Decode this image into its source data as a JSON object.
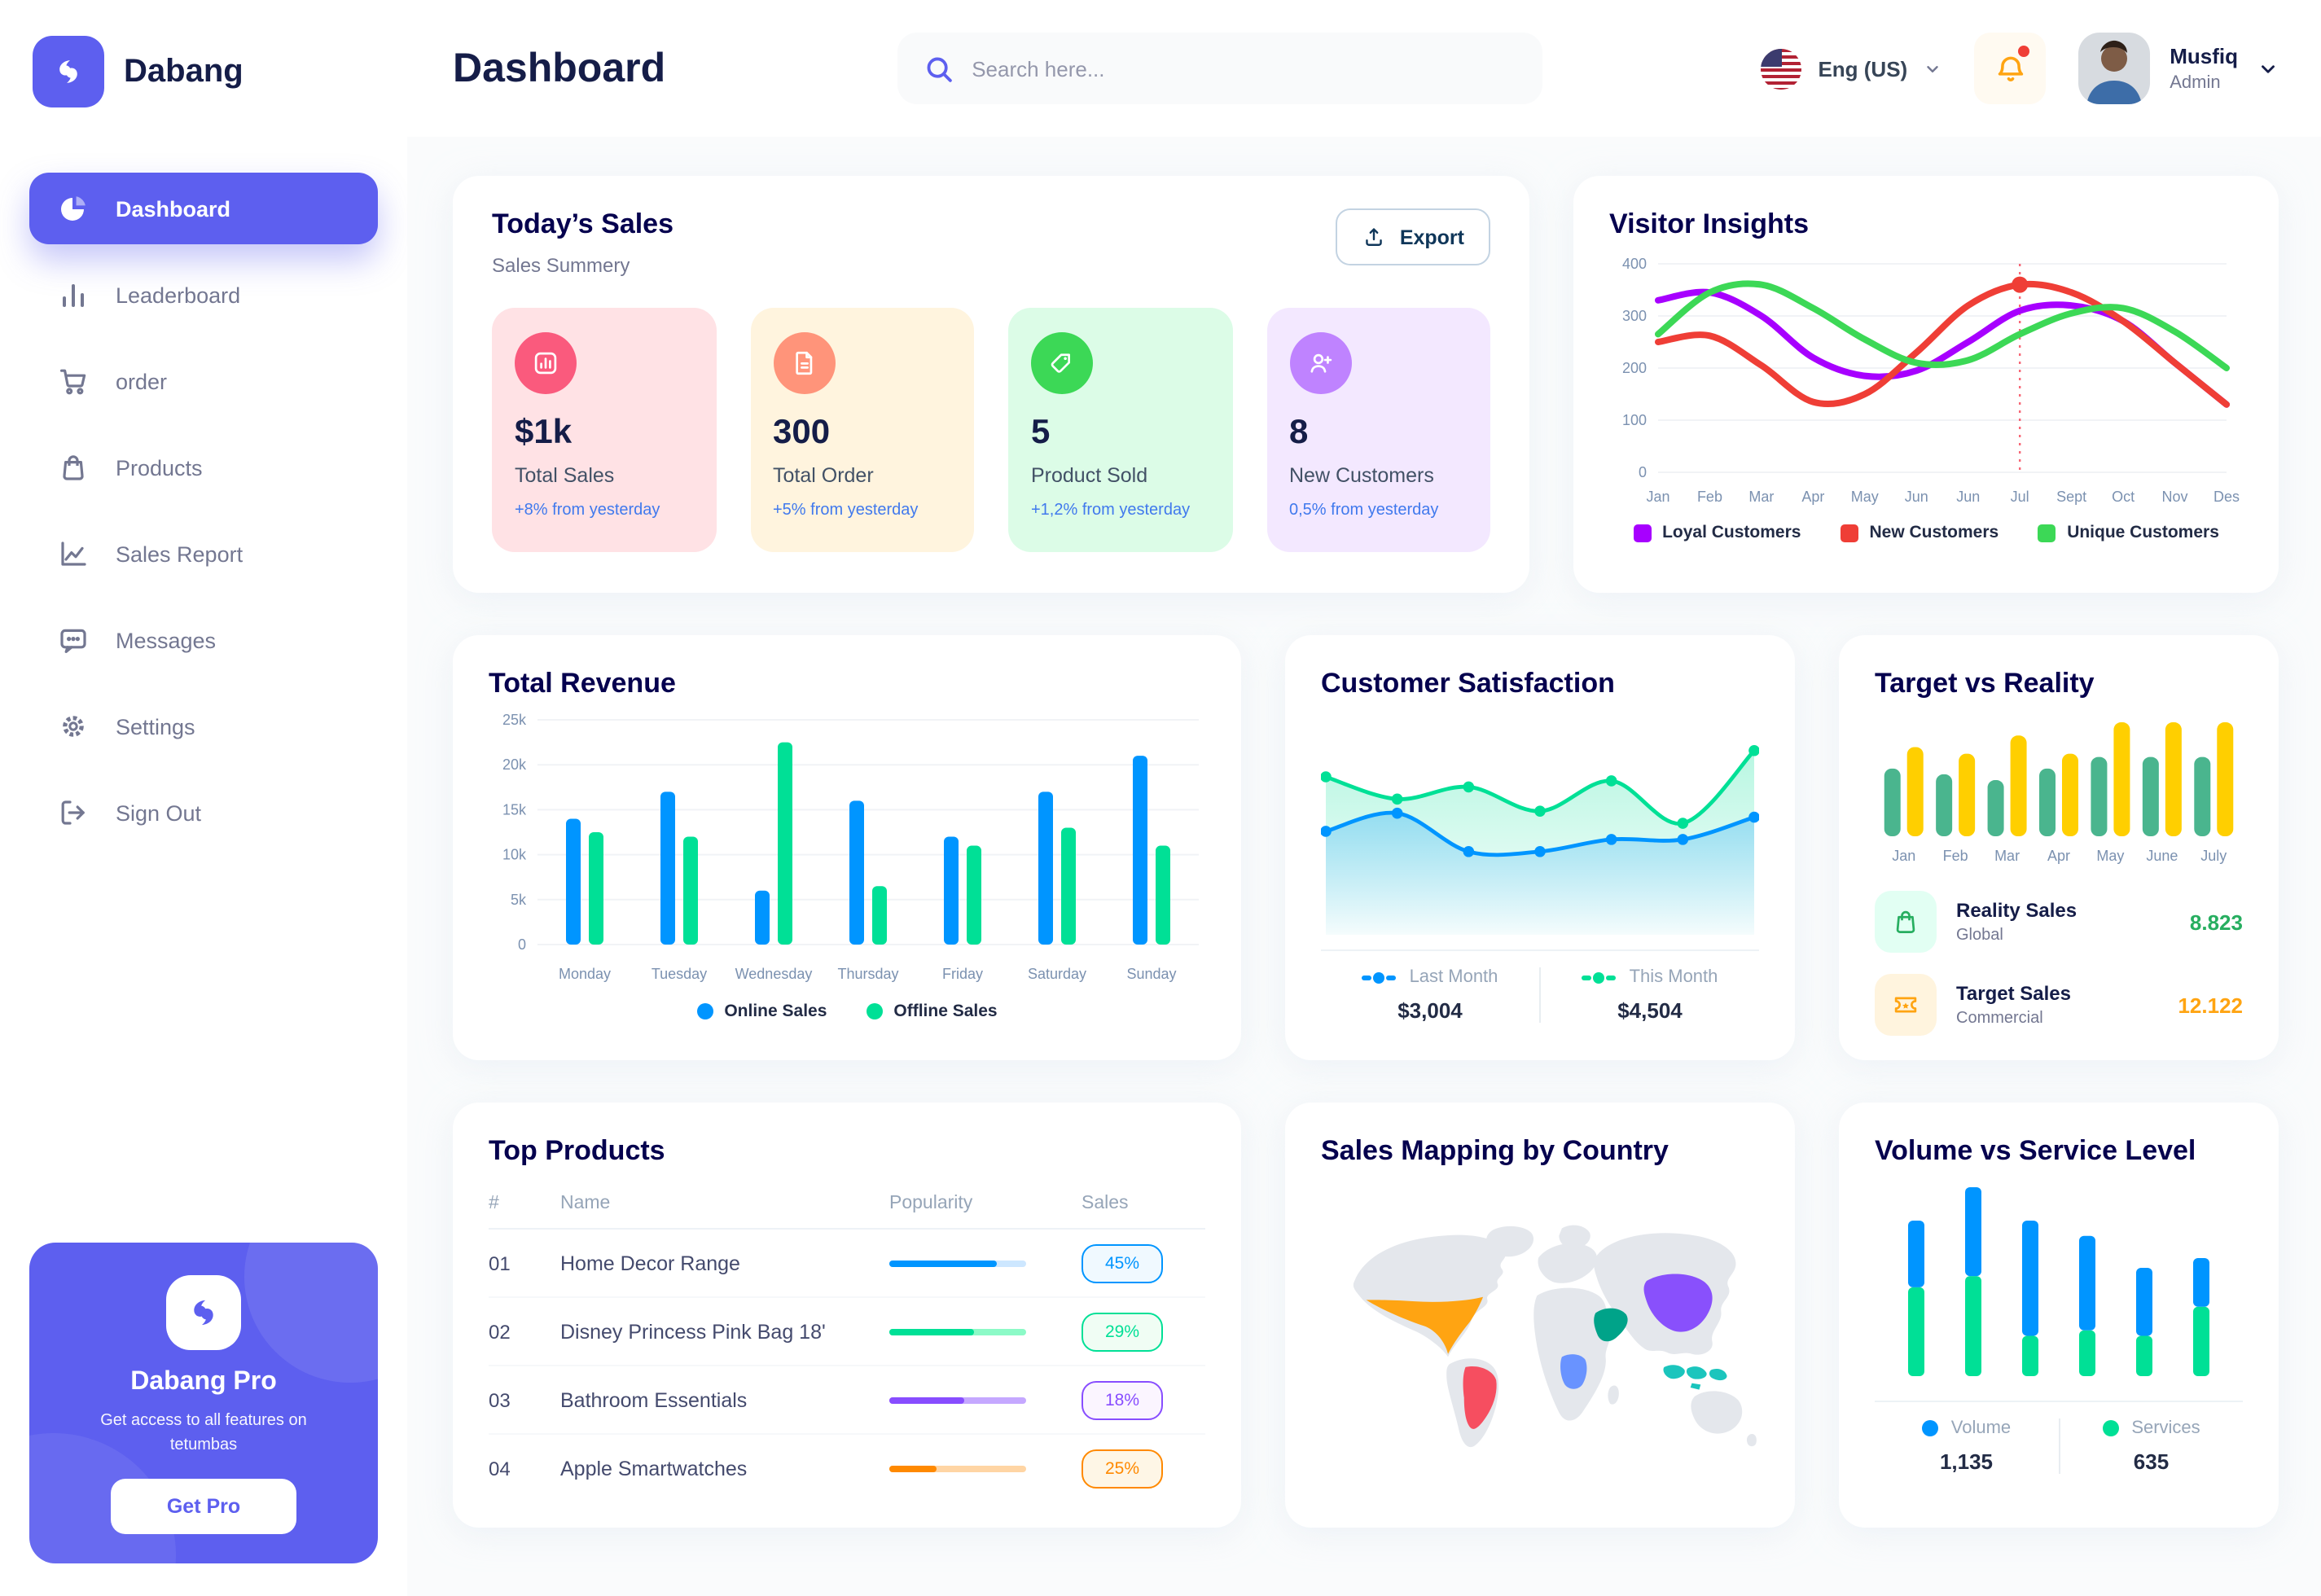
{
  "app": {
    "name": "Dabang"
  },
  "sidebar": {
    "items": [
      {
        "label": "Dashboard"
      },
      {
        "label": "Leaderboard"
      },
      {
        "label": "order"
      },
      {
        "label": "Products"
      },
      {
        "label": "Sales Report"
      },
      {
        "label": "Messages"
      },
      {
        "label": "Settings"
      },
      {
        "label": "Sign Out"
      }
    ],
    "pro_card": {
      "title": "Dabang Pro",
      "subtitle": "Get access to all features on tetumbas",
      "button_label": "Get Pro"
    }
  },
  "header": {
    "title": "Dashboard",
    "search_placeholder": "Search here...",
    "language": "Eng (US)",
    "user_name": "Musfiq",
    "user_role": "Admin"
  },
  "today": {
    "title": "Today’s Sales",
    "subtitle": "Sales Summery",
    "export_label": "Export",
    "cards": [
      {
        "value": "$1k",
        "label": "Total Sales",
        "delta": "+8% from yesterday",
        "bg": "#FFE2E5",
        "icon_bg": "#FA5A7D"
      },
      {
        "value": "300",
        "label": "Total Order",
        "delta": "+5% from yesterday",
        "bg": "#FFF4DE",
        "icon_bg": "#FF947A"
      },
      {
        "value": "5",
        "label": "Product Sold",
        "delta": "+1,2% from yesterday",
        "bg": "#DCFCE7",
        "icon_bg": "#3CD856"
      },
      {
        "value": "8",
        "label": "New Customers",
        "delta": "0,5% from yesterday",
        "bg": "#F3E8FF",
        "icon_bg": "#BF83FF"
      }
    ]
  },
  "top_products": {
    "title": "Top Products",
    "headers": {
      "num": "#",
      "name": "Name",
      "popularity": "Popularity",
      "sales": "Sales"
    },
    "rows": [
      {
        "num": "01",
        "name": "Home Decor Range",
        "progress": "78%",
        "sales": "45%",
        "color": "#0095FF",
        "track": "#CDE7FF",
        "badge_bg": "#F0F9FF"
      },
      {
        "num": "02",
        "name": "Disney Princess Pink Bag 18'",
        "progress": "62%",
        "sales": "29%",
        "color": "#00E096",
        "track": "#8CFAC7",
        "badge_bg": "#F0FDF4"
      },
      {
        "num": "03",
        "name": "Bathroom Essentials",
        "progress": "55%",
        "sales": "18%",
        "color": "#884DFF",
        "track": "#C5A8FF",
        "badge_bg": "#FBF5FF"
      },
      {
        "num": "04",
        "name": "Apple Smartwatches",
        "progress": "34%",
        "sales": "25%",
        "color": "#FF8900",
        "track": "#FFD5A4",
        "badge_bg": "#FEF6E6"
      }
    ]
  },
  "sales_map": {
    "title": "Sales Mapping by Country",
    "countries": [
      {
        "name": "United States",
        "color": "#FFA412"
      },
      {
        "name": "Brazil",
        "color": "#F64E60"
      },
      {
        "name": "Saudi Arabia",
        "color": "#00A389"
      },
      {
        "name": "DR Congo",
        "color": "#6993FF"
      },
      {
        "name": "China",
        "color": "#8950FC"
      },
      {
        "name": "Indonesia",
        "color": "#1BC5BD"
      }
    ]
  },
  "chart_data": [
    {
      "id": "visitor",
      "type": "line",
      "title": "Visitor Insights",
      "x": [
        "Jan",
        "Feb",
        "Mar",
        "Apr",
        "May",
        "Jun",
        "Jun",
        "Jul",
        "Sept",
        "Oct",
        "Nov",
        "Des"
      ],
      "ylim": [
        0,
        400
      ],
      "yticks": [
        0,
        100,
        200,
        300,
        400
      ],
      "grid": true,
      "legend_position": "bottom",
      "series": [
        {
          "name": "Loyal Customers",
          "color": "#A700FF",
          "values": [
            330,
            345,
            300,
            220,
            185,
            195,
            250,
            310,
            320,
            290,
            210,
            130
          ]
        },
        {
          "name": "New Customers",
          "color": "#EF3E36",
          "values": [
            250,
            262,
            205,
            135,
            150,
            230,
            320,
            360,
            345,
            290,
            210,
            130
          ]
        },
        {
          "name": "Unique Customers",
          "color": "#3CD856",
          "values": [
            265,
            345,
            360,
            315,
            255,
            210,
            215,
            265,
            305,
            315,
            270,
            200
          ]
        }
      ],
      "marker": {
        "series": 1,
        "index": 7
      }
    },
    {
      "id": "revenue",
      "type": "bar",
      "title": "Total Revenue",
      "categories": [
        "Monday",
        "Tuesday",
        "Wednesday",
        "Thursday",
        "Friday",
        "Saturday",
        "Sunday"
      ],
      "ylim": [
        0,
        25000
      ],
      "yticks": [
        0,
        5000,
        10000,
        15000,
        20000,
        25000
      ],
      "ytick_labels": [
        "0",
        "5k",
        "10k",
        "15k",
        "20k",
        "25k"
      ],
      "grid": true,
      "legend_position": "bottom",
      "series": [
        {
          "name": "Online Sales",
          "color": "#0095FF",
          "values": [
            14000,
            17000,
            6000,
            16000,
            12000,
            17000,
            21000
          ]
        },
        {
          "name": "Offline Sales",
          "color": "#00E096",
          "values": [
            12500,
            12000,
            22500,
            6500,
            11000,
            13000,
            11000
          ]
        }
      ]
    },
    {
      "id": "satisfaction",
      "type": "area",
      "title": "Customer Satisfaction",
      "ylim": [
        0,
        100
      ],
      "legend_position": "bottom",
      "series": [
        {
          "name": "Last Month",
          "value_label": "$3,004",
          "color": "#0095FF",
          "values": [
            48,
            57,
            38,
            38,
            44,
            44,
            55
          ]
        },
        {
          "name": "This Month",
          "value_label": "$4,504",
          "color": "#00E096",
          "values": [
            75,
            64,
            70,
            58,
            73,
            52,
            88
          ]
        }
      ]
    },
    {
      "id": "target",
      "type": "bar-rounded",
      "title": "Target vs Reality",
      "categories": [
        "Jan",
        "Feb",
        "Mar",
        "Apr",
        "May",
        "June",
        "July"
      ],
      "ylim": [
        0,
        14
      ],
      "legend_position": "bottom",
      "series": [
        {
          "name": "Reality Sales",
          "subtitle": "Global",
          "value_label": "8.823",
          "value_color": "#27AE60",
          "color": "#4AB58E",
          "values": [
            8.2,
            7.5,
            6.8,
            8.2,
            9.6,
            9.6,
            9.6
          ]
        },
        {
          "name": "Target Sales",
          "subtitle": "Commercial",
          "value_label": "12.122",
          "value_color": "#FFA412",
          "color": "#FFCF00",
          "values": [
            10.8,
            10,
            12.2,
            10,
            13.8,
            13.8,
            13.8
          ]
        }
      ]
    },
    {
      "id": "volume",
      "type": "stacked-bar",
      "title": "Volume vs Service Level",
      "legend_position": "bottom",
      "series": [
        {
          "name": "Volume",
          "value_label": "1,135",
          "color": "#0095FF",
          "values": [
            240,
            320,
            415,
            340,
            245,
            175
          ]
        },
        {
          "name": "Services",
          "value_label": "635",
          "color": "#00E096",
          "values": [
            320,
            360,
            145,
            165,
            145,
            250
          ]
        }
      ]
    }
  ]
}
